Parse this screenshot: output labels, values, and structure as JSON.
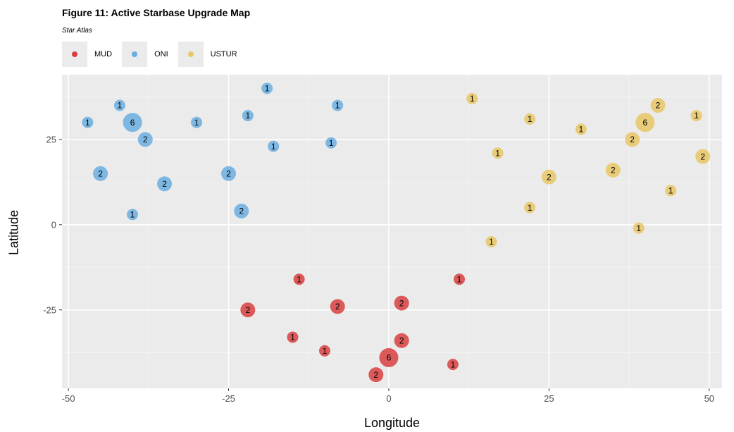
{
  "chart_data": {
    "type": "scatter",
    "title": "Figure 11: Active Starbase Upgrade Map",
    "subtitle": "Star Atlas",
    "xlabel": "Longitude",
    "ylabel": "Latitude",
    "xlim": [
      -51,
      52
    ],
    "ylim": [
      -48,
      44
    ],
    "xticks": [
      "-50",
      "-25",
      "0",
      "25",
      "50"
    ],
    "yticks": [
      "-25",
      "0",
      "25"
    ],
    "grid": true,
    "legend_position": "top-left",
    "series": [
      {
        "name": "MUD",
        "color": "#d93f3f",
        "points": [
          {
            "x": -14,
            "y": -16,
            "label": "1"
          },
          {
            "x": 11,
            "y": -16,
            "label": "1"
          },
          {
            "x": -22,
            "y": -25,
            "label": "2"
          },
          {
            "x": -8,
            "y": -24,
            "label": "2"
          },
          {
            "x": 2,
            "y": -23,
            "label": "2"
          },
          {
            "x": -15,
            "y": -33,
            "label": "1"
          },
          {
            "x": -10,
            "y": -37,
            "label": "1"
          },
          {
            "x": 2,
            "y": -34,
            "label": "2"
          },
          {
            "x": 0,
            "y": -39,
            "label": "6"
          },
          {
            "x": -2,
            "y": -44,
            "label": "2"
          },
          {
            "x": 10,
            "y": -41,
            "label": "1"
          }
        ]
      },
      {
        "name": "ONI",
        "color": "#6aaee0",
        "points": [
          {
            "x": -19,
            "y": 40,
            "label": "1"
          },
          {
            "x": -42,
            "y": 35,
            "label": "1"
          },
          {
            "x": -8,
            "y": 35,
            "label": "1"
          },
          {
            "x": -47,
            "y": 30,
            "label": "1"
          },
          {
            "x": -40,
            "y": 30,
            "label": "6"
          },
          {
            "x": -30,
            "y": 30,
            "label": "1"
          },
          {
            "x": -22,
            "y": 32,
            "label": "1"
          },
          {
            "x": -38,
            "y": 25,
            "label": "2"
          },
          {
            "x": -18,
            "y": 23,
            "label": "1"
          },
          {
            "x": -9,
            "y": 24,
            "label": "1"
          },
          {
            "x": -45,
            "y": 15,
            "label": "2"
          },
          {
            "x": -25,
            "y": 15,
            "label": "2"
          },
          {
            "x": -35,
            "y": 12,
            "label": "2"
          },
          {
            "x": -23,
            "y": 4,
            "label": "2"
          },
          {
            "x": -40,
            "y": 3,
            "label": "1"
          }
        ]
      },
      {
        "name": "USTUR",
        "color": "#e9c765",
        "points": [
          {
            "x": 13,
            "y": 37,
            "label": "1"
          },
          {
            "x": 42,
            "y": 35,
            "label": "2"
          },
          {
            "x": 22,
            "y": 31,
            "label": "1"
          },
          {
            "x": 48,
            "y": 32,
            "label": "1"
          },
          {
            "x": 30,
            "y": 28,
            "label": "1"
          },
          {
            "x": 40,
            "y": 30,
            "label": "6"
          },
          {
            "x": 38,
            "y": 25,
            "label": "2"
          },
          {
            "x": 17,
            "y": 21,
            "label": "1"
          },
          {
            "x": 49,
            "y": 20,
            "label": "2"
          },
          {
            "x": 25,
            "y": 14,
            "label": "2"
          },
          {
            "x": 35,
            "y": 16,
            "label": "2"
          },
          {
            "x": 44,
            "y": 10,
            "label": "1"
          },
          {
            "x": 22,
            "y": 5,
            "label": "1"
          },
          {
            "x": 39,
            "y": -1,
            "label": "1"
          },
          {
            "x": 16,
            "y": -5,
            "label": "1"
          }
        ]
      }
    ]
  }
}
